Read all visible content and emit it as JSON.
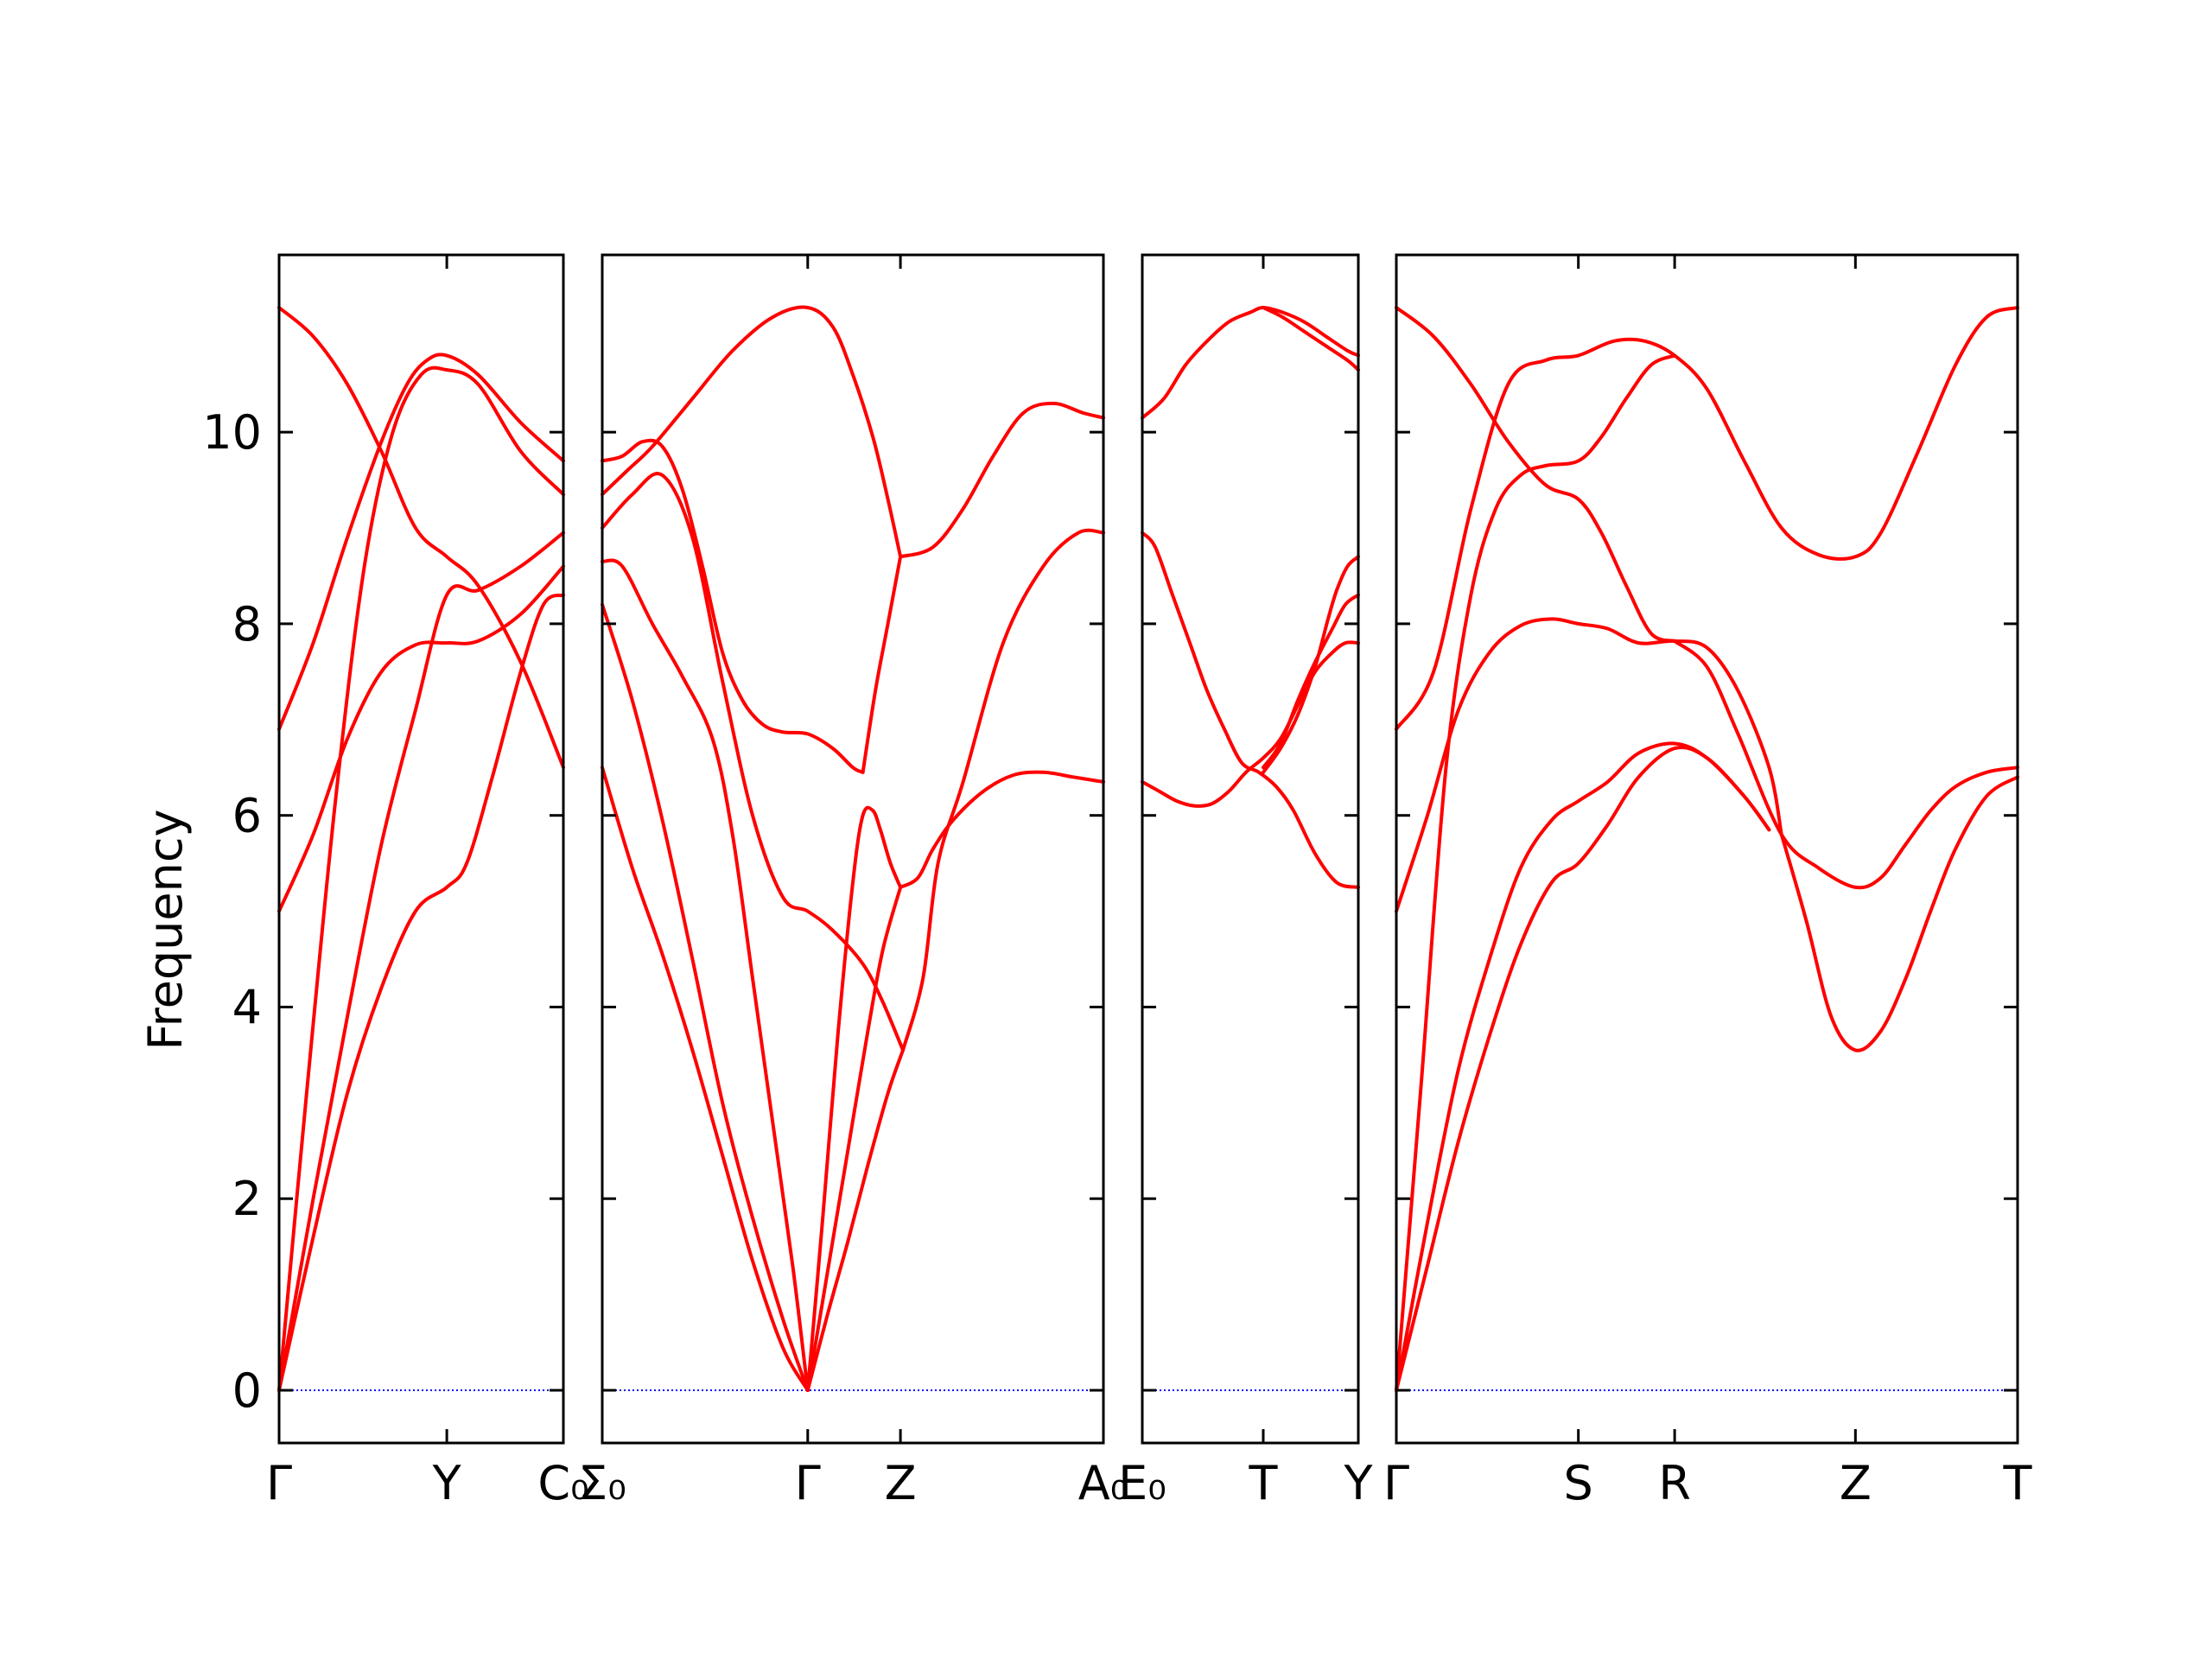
{
  "chart_data": {
    "type": "line",
    "title": "",
    "ylabel": "Frequency",
    "ylim": [
      -0.55,
      11.85
    ],
    "yticks": [
      0,
      2,
      4,
      6,
      8,
      10
    ],
    "grid": false,
    "legend": "none",
    "colors": {
      "band": "#ff0000",
      "zero_line": "#0000ff",
      "frame": "#000000"
    },
    "panels": [
      {
        "xticks": [
          {
            "x": 0,
            "label": "Γ"
          },
          {
            "x": 0.59,
            "label": "Y"
          },
          {
            "x": 1.0,
            "label": "C₀"
          }
        ],
        "bands": [
          {
            "x": [
              0,
              0.12,
              0.24,
              0.36,
              0.48,
              0.59,
              0.7,
              0.85,
              1.0
            ],
            "y": [
              11.3,
              11.0,
              10.5,
              9.8,
              9.0,
              8.7,
              8.4,
              7.6,
              6.5
            ]
          },
          {
            "x": [
              0,
              0.12,
              0.24,
              0.36,
              0.45,
              0.52,
              0.59,
              0.7,
              0.85,
              1.0
            ],
            "y": [
              6.9,
              7.8,
              8.9,
              9.9,
              10.5,
              10.75,
              10.8,
              10.6,
              10.1,
              9.7
            ]
          },
          {
            "x": [
              0,
              0.1,
              0.2,
              0.3,
              0.4,
              0.5,
              0.59,
              0.7,
              0.85,
              1.0
            ],
            "y": [
              0,
              3.2,
              6.2,
              8.6,
              10.0,
              10.6,
              10.65,
              10.5,
              9.8,
              9.35
            ]
          },
          {
            "x": [
              0,
              0.12,
              0.24,
              0.36,
              0.48,
              0.59,
              0.7,
              0.85,
              1.0
            ],
            "y": [
              5.0,
              5.8,
              6.8,
              7.5,
              7.78,
              7.8,
              7.82,
              8.1,
              8.6
            ]
          },
          {
            "x": [
              0,
              0.12,
              0.24,
              0.36,
              0.48,
              0.59,
              0.7,
              0.85,
              1.0
            ],
            "y": [
              0,
              2.0,
              3.9,
              5.7,
              7.1,
              8.3,
              8.35,
              8.6,
              8.95
            ]
          },
          {
            "x": [
              0,
              0.12,
              0.24,
              0.36,
              0.48,
              0.59,
              0.66,
              0.75,
              0.85,
              0.93,
              1.0
            ],
            "y": [
              0,
              1.6,
              3.1,
              4.2,
              5.0,
              5.25,
              5.5,
              6.4,
              7.5,
              8.2,
              8.3
            ]
          }
        ]
      },
      {
        "xticks": [
          {
            "x": 0,
            "label": "Σ₀"
          },
          {
            "x": 0.41,
            "label": "Γ"
          },
          {
            "x": 0.595,
            "label": "Z"
          },
          {
            "x": 1.0,
            "label": "A₀"
          }
        ],
        "bands": [
          {
            "x": [
              0,
              0.05,
              0.1,
              0.18,
              0.26,
              0.34,
              0.41,
              0.46,
              0.5,
              0.54,
              0.57,
              0.595
            ],
            "y": [
              9.35,
              9.6,
              9.85,
              10.35,
              10.85,
              11.2,
              11.3,
              11.1,
              10.6,
              9.95,
              9.3,
              8.7
            ]
          },
          {
            "x": [
              0.595,
              0.66,
              0.72,
              0.78,
              0.84,
              0.9,
              0.96,
              1.0
            ],
            "y": [
              8.7,
              8.8,
              9.2,
              9.75,
              10.2,
              10.3,
              10.2,
              10.15
            ]
          },
          {
            "x": [
              0,
              0.04,
              0.08,
              0.12,
              0.16,
              0.2,
              0.24,
              0.28,
              0.32,
              0.36,
              0.41,
              0.46,
              0.5,
              0.52
            ],
            "y": [
              9.7,
              9.75,
              9.9,
              9.85,
              9.4,
              8.6,
              7.7,
              7.2,
              6.95,
              6.87,
              6.85,
              6.7,
              6.5,
              6.45
            ]
          },
          {
            "x": [
              0.52,
              0.545,
              0.57,
              0.595
            ],
            "y": [
              6.45,
              7.3,
              8.0,
              8.7
            ]
          },
          {
            "x": [
              0,
              0.06,
              0.12,
              0.18,
              0.24,
              0.3,
              0.36,
              0.41,
              0.46,
              0.52,
              0.56,
              0.6
            ],
            "y": [
              9.0,
              9.35,
              9.55,
              8.9,
              7.4,
              6.0,
              5.15,
              5.0,
              4.8,
              4.45,
              4.05,
              3.55
            ]
          },
          {
            "x": [
              0.6,
              0.64,
              0.67,
              0.72,
              0.8,
              0.88,
              0.95,
              1.0
            ],
            "y": [
              3.55,
              4.3,
              5.5,
              6.35,
              7.8,
              8.6,
              8.95,
              8.95
            ]
          },
          {
            "x": [
              0,
              0.04,
              0.1,
              0.16,
              0.22,
              0.26,
              0.3,
              0.34,
              0.38,
              0.41
            ],
            "y": [
              8.65,
              8.6,
              8.0,
              7.45,
              6.8,
              5.8,
              4.3,
              2.8,
              1.3,
              0
            ]
          },
          {
            "x": [
              0,
              0.06,
              0.12,
              0.18,
              0.24,
              0.3,
              0.36,
              0.41
            ],
            "y": [
              8.2,
              7.2,
              5.95,
              4.5,
              3.0,
              1.8,
              0.75,
              0
            ]
          },
          {
            "x": [
              0,
              0.06,
              0.12,
              0.18,
              0.24,
              0.3,
              0.36,
              0.41
            ],
            "y": [
              6.5,
              5.45,
              4.55,
              3.55,
              2.45,
              1.35,
              0.45,
              0
            ]
          },
          {
            "x": [
              0.41,
              0.44,
              0.47,
              0.5,
              0.52,
              0.54,
              0.555,
              0.575,
              0.595
            ],
            "y": [
              0,
              1.8,
              3.7,
              5.3,
              6.0,
              6.05,
              5.85,
              5.5,
              5.25
            ]
          },
          {
            "x": [
              0.595,
              0.63,
              0.66,
              0.7,
              0.76,
              0.82,
              0.88,
              0.94,
              1.0
            ],
            "y": [
              5.25,
              5.35,
              5.65,
              5.95,
              6.25,
              6.42,
              6.45,
              6.4,
              6.35
            ]
          },
          {
            "x": [
              0.41,
              0.45,
              0.49,
              0.53,
              0.56,
              0.595
            ],
            "y": [
              0,
              1.25,
              2.5,
              3.75,
              4.6,
              5.25
            ]
          },
          {
            "x": [
              0.41,
              0.45,
              0.49,
              0.53,
              0.57,
              0.6
            ],
            "y": [
              0,
              0.8,
              1.55,
              2.35,
              3.1,
              3.55
            ]
          }
        ]
      },
      {
        "xticks": [
          {
            "x": 0,
            "label": "E₀"
          },
          {
            "x": 0.56,
            "label": "T"
          },
          {
            "x": 1.0,
            "label": "Y"
          }
        ],
        "bands": [
          {
            "x": [
              0,
              0.1,
              0.2,
              0.3,
              0.4,
              0.5,
              0.56,
              0.65,
              0.75,
              0.85,
              0.95,
              1.0
            ],
            "y": [
              10.15,
              10.35,
              10.7,
              10.95,
              11.15,
              11.25,
              11.3,
              11.25,
              11.15,
              11.0,
              10.85,
              10.8
            ]
          },
          {
            "x": [
              0.56,
              0.65,
              0.75,
              0.85,
              0.95,
              1.0
            ],
            "y": [
              11.3,
              11.2,
              11.05,
              10.9,
              10.75,
              10.65
            ]
          },
          {
            "x": [
              0,
              0.06,
              0.14,
              0.22,
              0.3,
              0.38,
              0.46,
              0.54,
              0.62,
              0.7,
              0.8,
              0.9,
              1.0
            ],
            "y": [
              8.95,
              8.8,
              8.3,
              7.8,
              7.3,
              6.9,
              6.55,
              6.45,
              6.3,
              6.05,
              5.6,
              5.3,
              5.25
            ]
          },
          {
            "x": [
              0,
              0.08,
              0.16,
              0.24,
              0.32,
              0.4,
              0.48,
              0.56,
              0.64,
              0.72,
              0.8,
              0.88,
              0.94,
              1.0
            ],
            "y": [
              6.35,
              6.25,
              6.15,
              6.1,
              6.12,
              6.25,
              6.45,
              6.6,
              6.8,
              7.15,
              7.5,
              7.7,
              7.8,
              7.8
            ]
          },
          {
            "x": [
              0.56,
              0.64,
              0.72,
              0.8,
              0.88,
              0.94,
              1.0
            ],
            "y": [
              6.5,
              6.75,
              7.2,
              7.6,
              7.95,
              8.2,
              8.3
            ]
          },
          {
            "x": [
              0.56,
              0.64,
              0.72,
              0.8,
              0.86,
              0.9,
              0.95,
              1.0
            ],
            "y": [
              6.45,
              6.7,
              7.05,
              7.55,
              8.05,
              8.35,
              8.6,
              8.7
            ]
          }
        ]
      },
      {
        "xticks": [
          {
            "x": 0,
            "label": "Γ"
          },
          {
            "x": 0.293,
            "label": "S"
          },
          {
            "x": 0.448,
            "label": "R"
          },
          {
            "x": 0.739,
            "label": "Z"
          },
          {
            "x": 1.0,
            "label": "T"
          }
        ],
        "bands": [
          {
            "x": [
              0,
              0.06,
              0.12,
              0.18,
              0.24,
              0.293,
              0.33,
              0.37,
              0.41,
              0.448
            ],
            "y": [
              11.3,
              11.0,
              10.5,
              9.9,
              9.45,
              9.3,
              8.95,
              8.4,
              7.9,
              7.82
            ]
          },
          {
            "x": [
              0.448,
              0.5,
              0.55,
              0.62,
              0.68,
              0.739,
              0.78,
              0.82,
              0.86,
              0.9,
              0.95,
              1.0
            ],
            "y": [
              7.82,
              7.55,
              6.85,
              5.8,
              5.45,
              5.25,
              5.35,
              5.7,
              6.05,
              6.3,
              6.45,
              6.5
            ]
          },
          {
            "x": [
              0,
              0.06,
              0.12,
              0.18,
              0.24,
              0.293,
              0.35,
              0.4,
              0.448,
              0.5,
              0.56,
              0.62,
              0.68,
              0.739,
              0.78,
              0.84,
              0.9,
              0.95,
              1.0
            ],
            "y": [
              6.9,
              7.5,
              9.2,
              10.5,
              10.75,
              10.8,
              10.95,
              10.95,
              10.8,
              10.45,
              9.7,
              9.0,
              8.72,
              8.7,
              8.95,
              9.8,
              10.7,
              11.2,
              11.3
            ]
          },
          {
            "x": [
              0,
              0.04,
              0.08,
              0.12,
              0.16,
              0.2,
              0.24,
              0.293,
              0.33,
              0.37,
              0.41,
              0.448
            ],
            "y": [
              0,
              3.2,
              6.5,
              8.3,
              9.2,
              9.55,
              9.65,
              9.7,
              9.95,
              10.35,
              10.7,
              10.8
            ]
          },
          {
            "x": [
              0,
              0.05,
              0.1,
              0.15,
              0.2,
              0.25,
              0.293,
              0.34,
              0.39,
              0.448,
              0.5,
              0.55,
              0.6,
              0.62
            ],
            "y": [
              5.0,
              6.0,
              7.1,
              7.7,
              7.98,
              8.05,
              8.0,
              7.95,
              7.8,
              7.82,
              7.75,
              7.3,
              6.5,
              5.8
            ]
          },
          {
            "x": [
              0.62,
              0.66,
              0.7,
              0.739,
              0.78,
              0.82,
              0.86,
              0.9,
              0.95,
              1.0
            ],
            "y": [
              5.8,
              4.9,
              3.9,
              3.55,
              3.75,
              4.3,
              5.0,
              5.65,
              6.2,
              6.4
            ]
          },
          {
            "x": [
              0,
              0.05,
              0.1,
              0.15,
              0.2,
              0.25,
              0.293,
              0.34,
              0.39,
              0.448,
              0.5,
              0.56,
              0.6
            ],
            "y": [
              0,
              1.75,
              3.35,
              4.5,
              5.45,
              5.95,
              6.15,
              6.35,
              6.65,
              6.75,
              6.6,
              6.2,
              5.85
            ]
          },
          {
            "x": [
              0,
              0.05,
              0.1,
              0.15,
              0.2,
              0.25,
              0.293,
              0.34,
              0.39,
              0.448,
              0.5,
              0.56,
              0.6
            ],
            "y": [
              0,
              1.3,
              2.6,
              3.7,
              4.65,
              5.3,
              5.5,
              5.9,
              6.4,
              6.7,
              6.6,
              6.2,
              5.85
            ]
          }
        ]
      }
    ]
  }
}
